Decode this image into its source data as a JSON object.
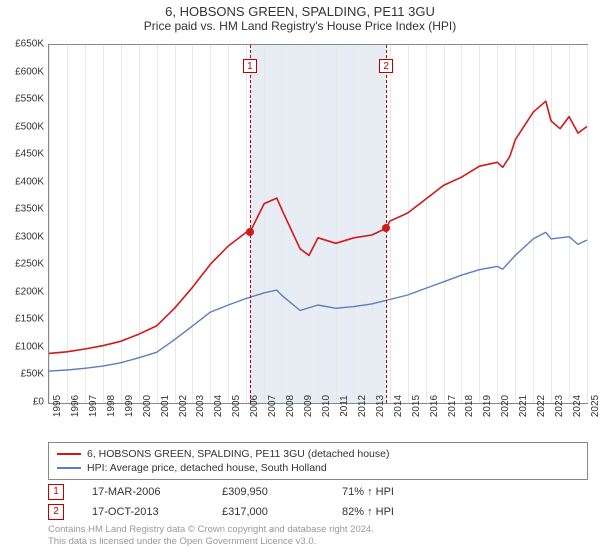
{
  "title": "6, HOBSONS GREEN, SPALDING, PE11 3GU",
  "subtitle": "Price paid vs. HM Land Registry's House Price Index (HPI)",
  "chart": {
    "type": "line",
    "x": {
      "min": 1995,
      "max": 2025,
      "tick_step": 1
    },
    "y": {
      "min": 0,
      "max": 650000,
      "tick_step": 50000,
      "tick_labels": [
        "£0",
        "£50K",
        "£100K",
        "£150K",
        "£200K",
        "£250K",
        "£300K",
        "£350K",
        "£400K",
        "£450K",
        "£500K",
        "£550K",
        "£600K",
        "£650K"
      ]
    },
    "grid_color": "#e8e8e8",
    "background_color": "#ffffff",
    "shade_band": {
      "from": 2006.2,
      "to": 2013.8,
      "color": "#e8edf5"
    },
    "event_lines": [
      {
        "x": 2006.2,
        "color": "#c00000",
        "label": "1"
      },
      {
        "x": 2013.8,
        "color": "#c00000",
        "label": "2"
      }
    ],
    "series": [
      {
        "name": "6, HOBSONS GREEN, SPALDING, PE11 3GU (detached house)",
        "color": "#d11919",
        "width": 1.6,
        "points": [
          [
            1995,
            90000
          ],
          [
            1996,
            93000
          ],
          [
            1997,
            98000
          ],
          [
            1998,
            104000
          ],
          [
            1999,
            112000
          ],
          [
            2000,
            125000
          ],
          [
            2001,
            140000
          ],
          [
            2002,
            172000
          ],
          [
            2003,
            210000
          ],
          [
            2004,
            252000
          ],
          [
            2005,
            285000
          ],
          [
            2006,
            310000
          ],
          [
            2006.2,
            310000
          ],
          [
            2007,
            362000
          ],
          [
            2007.7,
            372000
          ],
          [
            2008,
            350000
          ],
          [
            2009,
            280000
          ],
          [
            2009.5,
            268000
          ],
          [
            2010,
            300000
          ],
          [
            2011,
            290000
          ],
          [
            2012,
            300000
          ],
          [
            2013,
            305000
          ],
          [
            2013.8,
            317000
          ],
          [
            2014,
            330000
          ],
          [
            2015,
            345000
          ],
          [
            2016,
            370000
          ],
          [
            2017,
            395000
          ],
          [
            2018,
            410000
          ],
          [
            2019,
            430000
          ],
          [
            2020,
            437000
          ],
          [
            2020.3,
            428000
          ],
          [
            2020.7,
            448000
          ],
          [
            2021,
            478000
          ],
          [
            2022,
            528000
          ],
          [
            2022.7,
            548000
          ],
          [
            2023,
            512000
          ],
          [
            2023.5,
            498000
          ],
          [
            2024,
            520000
          ],
          [
            2024.5,
            490000
          ],
          [
            2025,
            502000
          ]
        ]
      },
      {
        "name": "HPI: Average price, detached house, South Holland",
        "color": "#5a7fbf",
        "width": 1.4,
        "points": [
          [
            1995,
            58000
          ],
          [
            1996,
            60000
          ],
          [
            1997,
            63000
          ],
          [
            1998,
            67000
          ],
          [
            1999,
            73000
          ],
          [
            2000,
            82000
          ],
          [
            2001,
            92000
          ],
          [
            2002,
            115000
          ],
          [
            2003,
            140000
          ],
          [
            2004,
            165000
          ],
          [
            2005,
            178000
          ],
          [
            2006,
            190000
          ],
          [
            2007,
            200000
          ],
          [
            2007.7,
            205000
          ],
          [
            2008,
            195000
          ],
          [
            2009,
            168000
          ],
          [
            2010,
            178000
          ],
          [
            2011,
            172000
          ],
          [
            2012,
            175000
          ],
          [
            2013,
            180000
          ],
          [
            2014,
            188000
          ],
          [
            2015,
            196000
          ],
          [
            2016,
            208000
          ],
          [
            2017,
            220000
          ],
          [
            2018,
            232000
          ],
          [
            2019,
            242000
          ],
          [
            2020,
            248000
          ],
          [
            2020.3,
            243000
          ],
          [
            2021,
            268000
          ],
          [
            2022,
            298000
          ],
          [
            2022.7,
            310000
          ],
          [
            2023,
            298000
          ],
          [
            2024,
            302000
          ],
          [
            2024.5,
            288000
          ],
          [
            2025,
            296000
          ]
        ]
      }
    ],
    "sale_points": [
      {
        "x": 2006.2,
        "y": 310000,
        "color": "#d11919"
      },
      {
        "x": 2013.8,
        "y": 317000,
        "color": "#d11919"
      }
    ]
  },
  "legend": {
    "items": [
      {
        "color": "#d11919",
        "label": "6, HOBSONS GREEN, SPALDING, PE11 3GU (detached house)"
      },
      {
        "color": "#5a7fbf",
        "label": "HPI: Average price, detached house, South Holland"
      }
    ]
  },
  "sales": [
    {
      "marker": "1",
      "date": "17-MAR-2006",
      "price": "£309,950",
      "hpi": "71% ↑ HPI"
    },
    {
      "marker": "2",
      "date": "17-OCT-2013",
      "price": "£317,000",
      "hpi": "82% ↑ HPI"
    }
  ],
  "footer": {
    "line1": "Contains HM Land Registry data © Crown copyright and database right 2024.",
    "line2": "This data is licensed under the Open Government Licence v3.0."
  }
}
